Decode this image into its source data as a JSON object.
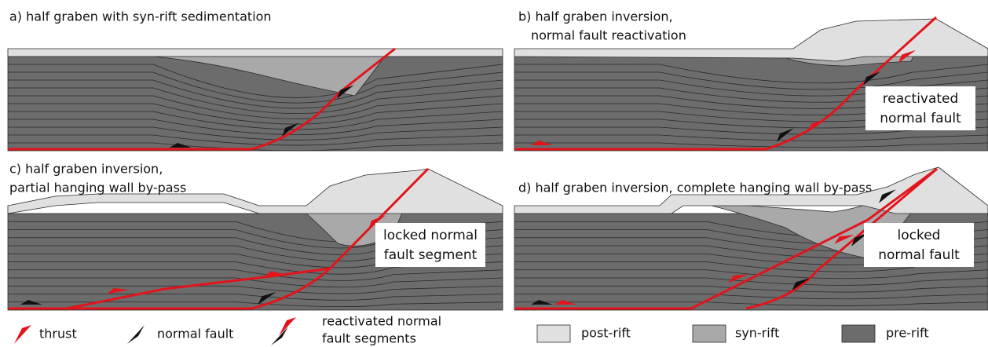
{
  "panels": [
    {
      "title_lines": [
        "a)  half graben with syn-rift sedimentation"
      ]
    },
    {
      "title_lines": [
        "b) half graben inversion,",
        "normal fault reactivation"
      ],
      "annotation_lines": [
        "reactivated",
        "normal fault"
      ]
    },
    {
      "title_lines": [
        "c) half graben inversion,",
        "partial hanging wall by-pass"
      ],
      "annotation_lines": [
        "locked normal",
        "fault segment"
      ]
    },
    {
      "title_lines": [
        "d) half graben inversion, complete hanging wall by-pass"
      ],
      "annotation_lines": [
        "locked",
        "normal fault"
      ]
    }
  ],
  "legend": {
    "symbols": [
      {
        "label_lines": [
          "thrust"
        ]
      },
      {
        "label_lines": [
          "normal fault"
        ]
      },
      {
        "label_lines": [
          "reactivated normal",
          "fault segments"
        ]
      }
    ],
    "units": [
      {
        "label_lines": [
          "post-rift"
        ]
      },
      {
        "label_lines": [
          "syn-rift"
        ]
      },
      {
        "label_lines": [
          "pre-rift"
        ]
      }
    ]
  }
}
